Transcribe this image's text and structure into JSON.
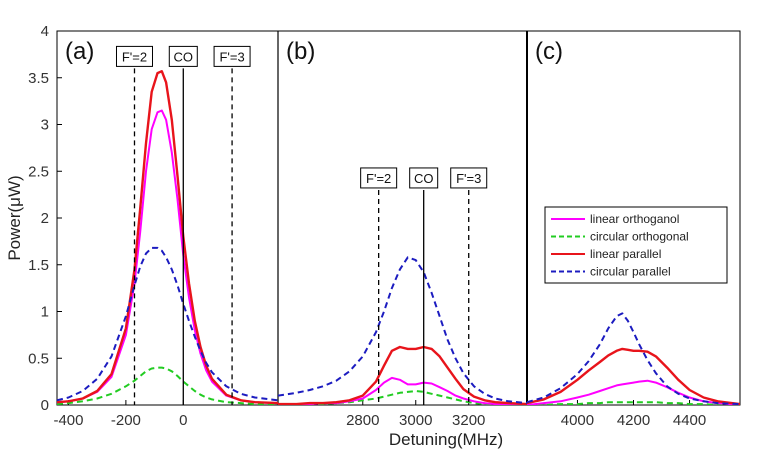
{
  "chart_data": {
    "type": "line",
    "ylabel": "Power(μW)",
    "xlabel": "Detuning(MHz)",
    "ylim": [
      0,
      4
    ],
    "y_ticks": [
      "0",
      "0.5",
      "1",
      "1.5",
      "2",
      "2.5",
      "3",
      "3.5",
      "4"
    ],
    "legend": {
      "location": "inside panel (c), upper-left",
      "entries": [
        {
          "key": "lin_orth",
          "label": "linear orthoganol",
          "color": "#ff00ff",
          "dash": "solid"
        },
        {
          "key": "circ_orth",
          "label": "circular orthogonal",
          "color": "#22cc22",
          "dash": "dashed"
        },
        {
          "key": "lin_par",
          "label": "linear parallel",
          "color": "#e8141b",
          "dash": "solid"
        },
        {
          "key": "circ_par",
          "label": "circular parallel",
          "color": "#1c1cc0",
          "dash": "dashed"
        }
      ]
    },
    "panels": [
      {
        "label": "(a)",
        "xlim": [
          -440,
          330
        ],
        "x_ticks": [
          -400,
          -200,
          0
        ],
        "x_tick_labels": [
          "-400",
          "-200",
          "0"
        ],
        "markers": [
          {
            "x": -170,
            "label": "F'=2",
            "style": "dashed",
            "label_y": 3.6
          },
          {
            "x": 0,
            "label": "CO",
            "style": "solid",
            "label_y": 3.6
          },
          {
            "x": 170,
            "label": "F'=3",
            "style": "dashed",
            "label_y": 3.6
          }
        ],
        "series": {
          "lin_orth": {
            "x": [
              -440,
              -400,
              -350,
              -300,
              -250,
              -200,
              -170,
              -150,
              -130,
              -110,
              -90,
              -75,
              -60,
              -40,
              -20,
              0,
              20,
              40,
              60,
              80,
              100,
              150,
              200,
              250,
              330
            ],
            "y": [
              0.03,
              0.04,
              0.07,
              0.14,
              0.3,
              0.75,
              1.3,
              1.85,
              2.5,
              2.95,
              3.13,
              3.15,
              3.05,
              2.7,
              2.2,
              1.6,
              1.15,
              0.8,
              0.55,
              0.37,
              0.25,
              0.1,
              0.05,
              0.03,
              0.02
            ]
          },
          "lin_par": {
            "x": [
              -440,
              -400,
              -350,
              -300,
              -250,
              -200,
              -170,
              -150,
              -130,
              -110,
              -90,
              -75,
              -60,
              -40,
              -20,
              0,
              20,
              40,
              60,
              80,
              100,
              150,
              200,
              250,
              330
            ],
            "y": [
              0.03,
              0.04,
              0.07,
              0.15,
              0.33,
              0.82,
              1.45,
              2.1,
              2.8,
              3.35,
              3.55,
              3.57,
              3.45,
              3.05,
              2.45,
              1.8,
              1.3,
              0.9,
              0.62,
              0.42,
              0.28,
              0.11,
              0.05,
              0.03,
              0.02
            ]
          },
          "circ_par": {
            "x": [
              -440,
              -400,
              -350,
              -300,
              -250,
              -200,
              -170,
              -150,
              -130,
              -110,
              -90,
              -75,
              -60,
              -40,
              -20,
              0,
              20,
              40,
              60,
              80,
              100,
              150,
              200,
              250,
              330
            ],
            "y": [
              0.05,
              0.08,
              0.15,
              0.28,
              0.52,
              0.95,
              1.28,
              1.48,
              1.62,
              1.68,
              1.68,
              1.65,
              1.58,
              1.45,
              1.28,
              1.08,
              0.9,
              0.73,
              0.58,
              0.45,
              0.35,
              0.2,
              0.12,
              0.08,
              0.05
            ]
          },
          "circ_orth": {
            "x": [
              -440,
              -400,
              -350,
              -300,
              -250,
              -200,
              -170,
              -150,
              -130,
              -110,
              -90,
              -75,
              -60,
              -40,
              -20,
              0,
              20,
              40,
              60,
              80,
              100,
              150,
              200,
              250,
              330
            ],
            "y": [
              0.01,
              0.02,
              0.04,
              0.07,
              0.12,
              0.2,
              0.26,
              0.31,
              0.36,
              0.39,
              0.4,
              0.4,
              0.39,
              0.36,
              0.31,
              0.25,
              0.2,
              0.15,
              0.11,
              0.08,
              0.06,
              0.03,
              0.02,
              0.01,
              0.01
            ]
          }
        }
      },
      {
        "label": "(b)",
        "xlim": [
          2480,
          3420
        ],
        "x_ticks": [
          2800,
          3000,
          3200
        ],
        "x_tick_labels": [
          "2800",
          "3000",
          "3200"
        ],
        "markers": [
          {
            "x": 2860,
            "label": "F'=2",
            "style": "dashed",
            "label_y": 2.3
          },
          {
            "x": 3030,
            "label": "CO",
            "style": "solid",
            "label_y": 2.3
          },
          {
            "x": 3200,
            "label": "F'=3",
            "style": "dashed",
            "label_y": 2.3
          }
        ],
        "series": {
          "circ_par": {
            "x": [
              2480,
              2550,
              2600,
              2650,
              2700,
              2750,
              2800,
              2850,
              2880,
              2910,
              2940,
              2970,
              3000,
              3030,
              3060,
              3090,
              3120,
              3150,
              3180,
              3220,
              3260,
              3300,
              3350,
              3420
            ],
            "y": [
              0.1,
              0.13,
              0.16,
              0.2,
              0.26,
              0.36,
              0.52,
              0.78,
              1.0,
              1.25,
              1.45,
              1.58,
              1.55,
              1.42,
              1.2,
              0.95,
              0.7,
              0.5,
              0.34,
              0.2,
              0.12,
              0.07,
              0.04,
              0.02
            ]
          },
          "lin_par": {
            "x": [
              2480,
              2550,
              2600,
              2650,
              2700,
              2750,
              2800,
              2850,
              2880,
              2910,
              2940,
              2970,
              3000,
              3030,
              3060,
              3090,
              3120,
              3150,
              3180,
              3220,
              3260,
              3300,
              3350,
              3420
            ],
            "y": [
              0.01,
              0.01,
              0.02,
              0.02,
              0.03,
              0.05,
              0.1,
              0.25,
              0.42,
              0.58,
              0.62,
              0.6,
              0.6,
              0.62,
              0.6,
              0.52,
              0.4,
              0.28,
              0.17,
              0.09,
              0.05,
              0.03,
              0.02,
              0.01
            ]
          },
          "lin_orth": {
            "x": [
              2480,
              2550,
              2600,
              2650,
              2700,
              2750,
              2800,
              2850,
              2880,
              2910,
              2940,
              2970,
              3000,
              3030,
              3060,
              3090,
              3120,
              3150,
              3180,
              3220,
              3260,
              3300,
              3350,
              3420
            ],
            "y": [
              0.01,
              0.01,
              0.01,
              0.02,
              0.02,
              0.04,
              0.07,
              0.16,
              0.24,
              0.29,
              0.27,
              0.22,
              0.22,
              0.24,
              0.23,
              0.19,
              0.15,
              0.1,
              0.07,
              0.04,
              0.02,
              0.01,
              0.01,
              0.01
            ]
          },
          "circ_orth": {
            "x": [
              2480,
              2550,
              2600,
              2650,
              2700,
              2750,
              2800,
              2850,
              2880,
              2910,
              2940,
              2970,
              3000,
              3030,
              3060,
              3090,
              3120,
              3150,
              3180,
              3220,
              3260,
              3300,
              3350,
              3420
            ],
            "y": [
              0.0,
              0.0,
              0.01,
              0.01,
              0.02,
              0.03,
              0.05,
              0.07,
              0.09,
              0.11,
              0.13,
              0.14,
              0.15,
              0.14,
              0.12,
              0.1,
              0.08,
              0.06,
              0.04,
              0.02,
              0.01,
              0.01,
              0.0,
              0.0
            ]
          }
        }
      },
      {
        "label": "(c)",
        "xlim": [
          3820,
          4580
        ],
        "x_ticks": [
          4000,
          4200,
          4400
        ],
        "x_tick_labels": [
          "4000",
          "4200",
          "4400"
        ],
        "markers": [],
        "series": {
          "circ_par": {
            "x": [
              3820,
              3880,
              3940,
              4000,
              4040,
              4080,
              4110,
              4140,
              4160,
              4180,
              4200,
              4220,
              4250,
              4280,
              4320,
              4360,
              4400,
              4450,
              4500,
              4580
            ],
            "y": [
              0.03,
              0.08,
              0.18,
              0.33,
              0.47,
              0.65,
              0.82,
              0.95,
              0.98,
              0.9,
              0.78,
              0.65,
              0.48,
              0.34,
              0.2,
              0.12,
              0.07,
              0.04,
              0.02,
              0.01
            ]
          },
          "lin_par": {
            "x": [
              3820,
              3880,
              3940,
              4000,
              4040,
              4080,
              4110,
              4140,
              4160,
              4180,
              4200,
              4220,
              4250,
              4280,
              4320,
              4360,
              4400,
              4450,
              4500,
              4580
            ],
            "y": [
              0.02,
              0.06,
              0.14,
              0.27,
              0.37,
              0.46,
              0.53,
              0.58,
              0.6,
              0.59,
              0.58,
              0.58,
              0.57,
              0.52,
              0.4,
              0.27,
              0.16,
              0.08,
              0.04,
              0.01
            ]
          },
          "lin_orth": {
            "x": [
              3820,
              3880,
              3940,
              4000,
              4040,
              4080,
              4110,
              4140,
              4160,
              4180,
              4200,
              4220,
              4250,
              4280,
              4320,
              4360,
              4400,
              4450,
              4500,
              4580
            ],
            "y": [
              0.0,
              0.02,
              0.04,
              0.08,
              0.11,
              0.15,
              0.18,
              0.21,
              0.22,
              0.23,
              0.24,
              0.25,
              0.26,
              0.24,
              0.19,
              0.13,
              0.08,
              0.04,
              0.02,
              0.0
            ]
          },
          "circ_orth": {
            "x": [
              3820,
              3880,
              3940,
              4000,
              4040,
              4080,
              4110,
              4140,
              4160,
              4180,
              4200,
              4220,
              4250,
              4280,
              4320,
              4360,
              4400,
              4450,
              4500,
              4580
            ],
            "y": [
              0.0,
              0.0,
              0.01,
              0.01,
              0.02,
              0.02,
              0.03,
              0.03,
              0.03,
              0.03,
              0.03,
              0.03,
              0.03,
              0.03,
              0.02,
              0.02,
              0.01,
              0.01,
              0.0,
              0.0
            ]
          }
        }
      }
    ]
  }
}
